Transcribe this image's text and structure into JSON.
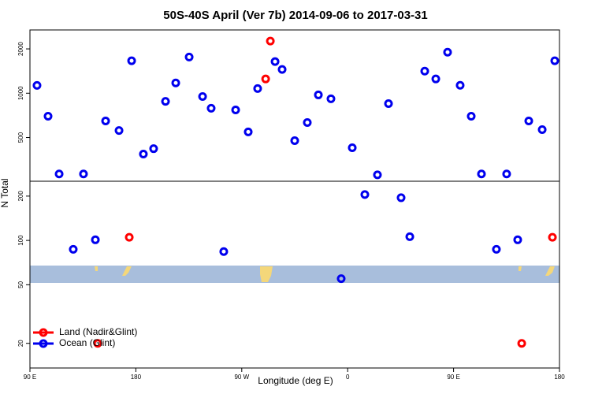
{
  "chart_data": {
    "type": "scatter",
    "title": "50S-40S April (Ver 7b)   2014-09-06 to 2017-03-31",
    "x_label": "Longitude (deg E)",
    "y_label": "N Total",
    "log_y": true,
    "legend": "bottomleft",
    "xlim": [
      90,
      540
    ],
    "xticks": [
      {
        "value": 90,
        "label": "90 E"
      },
      180,
      {
        "value": 270,
        "label": "90 W"
      },
      0,
      {
        "value": 450,
        "label": "90 E"
      },
      {
        "value": 540,
        "label": "180"
      }
    ],
    "ylim": [
      13.6,
      2690
    ],
    "yticks": [
      20,
      50,
      100,
      200,
      500,
      1000,
      2000
    ],
    "series": [
      {
        "name": "Land (Nadir&Glint)",
        "color": "#ff0000",
        "x": [
          174.4,
          147.6,
          290.3,
          294.3,
          507.9,
          534
        ],
        "values": [
          105,
          20,
          1250,
          2260,
          20,
          105
        ]
      },
      {
        "name": "Ocean (Glint)",
        "color": "#0000ee",
        "x": [
          96,
          105.4,
          114.8,
          135.5,
          126.8,
          145.6,
          154.3,
          165.7,
          176.4,
          186.4,
          195.1,
          205.2,
          213.9,
          225.3,
          236.7,
          244,
          254.7,
          264.8,
          275.5,
          283.5,
          298.3,
          304.3,
          315,
          325.7,
          335.1,
          345.8,
          354.5,
          363.9,
          374.6,
          385.3,
          394.7,
          405.4,
          412.8,
          425.5,
          434.9,
          444.9,
          455.6,
          465,
          473.7,
          486.4,
          495.1,
          504.5,
          513.9,
          525.3,
          536
        ],
        "values": [
          1130,
          698,
          283,
          283,
          87,
          101,
          648,
          558,
          1660,
          386,
          420,
          880,
          1174,
          1760,
          950,
          790,
          84,
          770,
          546,
          1076,
          1640,
          1450,
          476,
          632,
          974,
          916,
          55,
          426,
          205,
          279,
          850,
          195,
          106,
          1412,
          1250,
          1900,
          1132,
          698,
          283,
          87,
          283,
          101,
          648,
          566,
          1660
        ]
      }
    ]
  }
}
